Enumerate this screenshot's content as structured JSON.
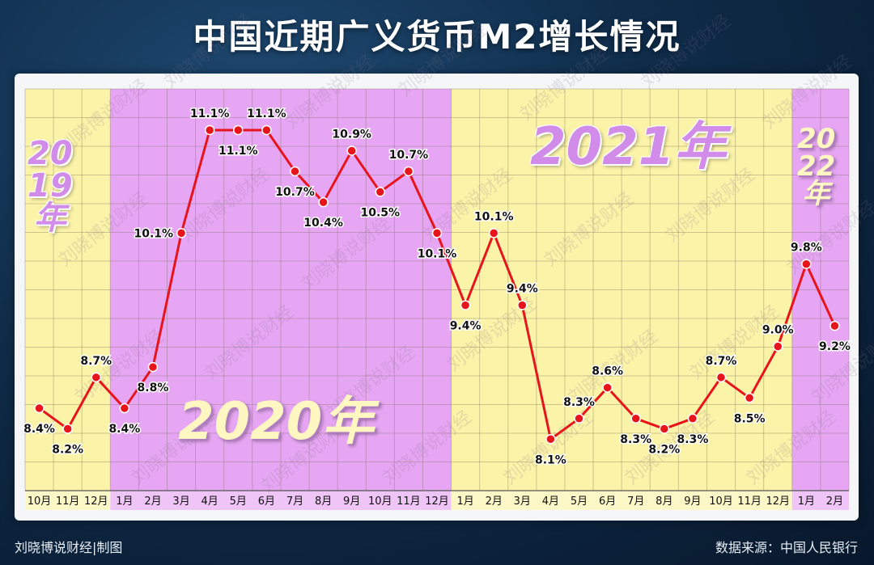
{
  "page": {
    "title": "中国近期广义货币M2增长情况",
    "credit": "刘晓博说财经|制图",
    "source": "数据来源：中国人民银行",
    "watermark": "刘晓博说财经"
  },
  "periods": [
    {
      "label": "2019年",
      "lines": [
        "20",
        "19",
        "年"
      ],
      "from": 0,
      "to": 2,
      "color": "#fbf3a8"
    },
    {
      "label": "2020年",
      "lines": [
        "2020年"
      ],
      "from": 3,
      "to": 14,
      "color": "#e7a6f3"
    },
    {
      "label": "2021年",
      "lines": [
        "2021年"
      ],
      "from": 15,
      "to": 26,
      "color": "#fbf3a8"
    },
    {
      "label": "2022年",
      "lines": [
        "20",
        "22",
        "年"
      ],
      "from": 27,
      "to": 28,
      "color": "#e7a6f3"
    }
  ],
  "colors": {
    "line": "#e8141b",
    "point_fill": "#e8141b",
    "yellow_band": "#fbf3a8",
    "purple_band": "#e7a6f3",
    "label_text": "#111111"
  },
  "chart_data": {
    "type": "line",
    "title": "中国近期广义货币M2增长情况",
    "xlabel": "",
    "ylabel": "",
    "categories": [
      "10月",
      "11月",
      "12月",
      "1月",
      "2月",
      "3月",
      "4月",
      "5月",
      "6月",
      "7月",
      "8月",
      "9月",
      "10月",
      "11月",
      "12月",
      "1月",
      "2月",
      "3月",
      "4月",
      "5月",
      "6月",
      "7月",
      "8月",
      "9月",
      "10月",
      "11月",
      "12月",
      "1月",
      "2月"
    ],
    "series": [
      {
        "values": [
          8.4,
          8.2,
          8.7,
          8.4,
          8.8,
          10.1,
          11.1,
          11.1,
          11.1,
          10.7,
          10.4,
          10.9,
          10.5,
          10.7,
          10.1,
          9.4,
          10.1,
          9.4,
          8.1,
          8.3,
          8.6,
          8.3,
          8.2,
          8.3,
          8.7,
          8.5,
          9.0,
          9.8,
          9.2
        ],
        "labels": [
          "8.4%",
          "8.2%",
          "8.7%",
          "8.4%",
          "8.8%",
          "10.1%",
          "11.1%",
          "11.1%",
          "11.1%",
          "10.7%",
          "10.4%",
          "10.9%",
          "10.5%",
          "10.7%",
          "10.1%",
          "9.4%",
          "10.1%",
          "9.4%",
          "8.1%",
          "8.3%",
          "8.6%",
          "8.3%",
          "8.2%",
          "8.3%",
          "8.7%",
          "8.5%",
          "9.0%",
          "9.8%",
          "9.2%"
        ]
      }
    ],
    "label_position": [
      "below",
      "below",
      "above",
      "below",
      "below",
      "left",
      "above",
      "below",
      "above",
      "below",
      "below",
      "above",
      "below",
      "above",
      "below",
      "below",
      "above",
      "above",
      "below",
      "above",
      "above",
      "below",
      "below",
      "below",
      "above",
      "below",
      "above",
      "above",
      "below"
    ],
    "ylim": [
      7.6,
      11.5
    ],
    "grid": true,
    "legend": "none"
  }
}
